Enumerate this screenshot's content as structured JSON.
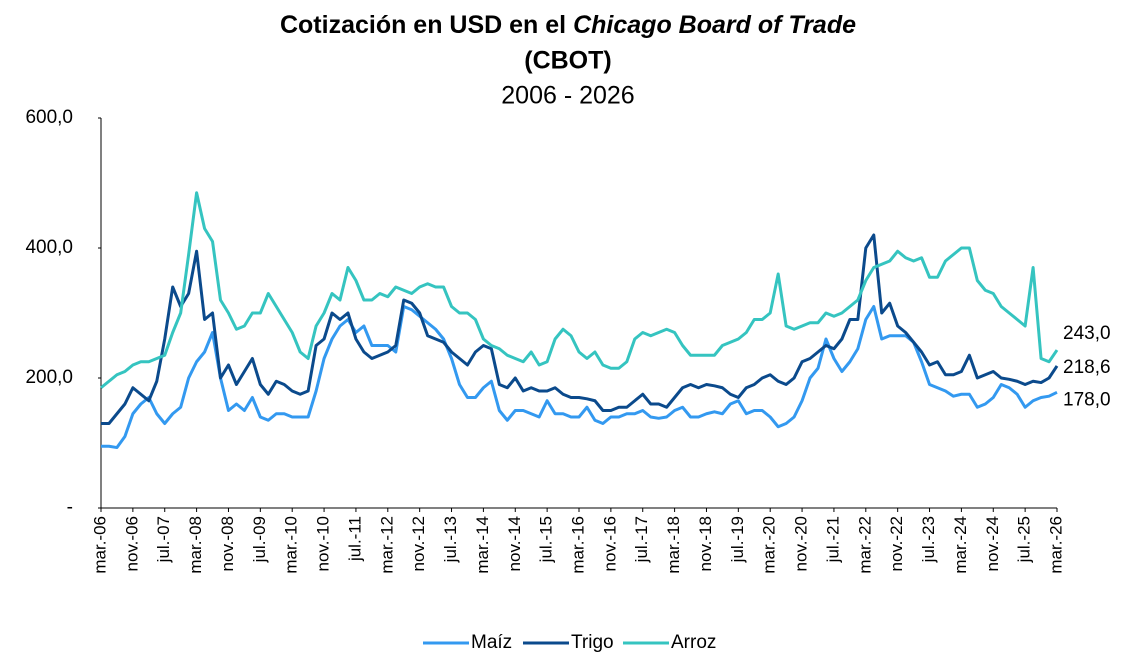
{
  "chart_data": {
    "type": "line",
    "title": "Cotización en USD en el",
    "title_italic": "Chicago  Board of Trade",
    "title_line2": "(CBOT)",
    "subtitle": "2006 - 2026",
    "ylim": [
      0,
      600
    ],
    "yticks": [
      {
        "value": 0,
        "label": "-"
      },
      {
        "value": 200,
        "label": "200,0"
      },
      {
        "value": 400,
        "label": "400,0"
      },
      {
        "value": 600,
        "label": "600,0"
      }
    ],
    "grid": false,
    "legend": "bottom",
    "categories": [
      "mar.-06",
      null,
      null,
      null,
      "nov.-06",
      null,
      null,
      null,
      "jul.-07",
      null,
      null,
      null,
      "mar.-08",
      null,
      null,
      null,
      "nov.-08",
      null,
      null,
      null,
      "jul.-09",
      null,
      null,
      null,
      "mar.-10",
      null,
      null,
      null,
      "nov.-10",
      null,
      null,
      null,
      "jul.-11",
      null,
      null,
      null,
      "mar.-12",
      null,
      null,
      null,
      "nov.-12",
      null,
      null,
      null,
      "jul.-13",
      null,
      null,
      null,
      "mar.-14",
      null,
      null,
      null,
      "nov.-14",
      null,
      null,
      null,
      "jul.-15",
      null,
      null,
      null,
      "mar.-16",
      null,
      null,
      null,
      "nov.-16",
      null,
      null,
      null,
      "jul.-17",
      null,
      null,
      null,
      "mar.-18",
      null,
      null,
      null,
      "nov.-18",
      null,
      null,
      null,
      "jul.-19",
      null,
      null,
      null,
      "mar.-20",
      null,
      null,
      null,
      "nov.-20",
      null,
      null,
      null,
      "jul.-21",
      null,
      null,
      null,
      "mar.-22",
      null,
      null,
      null,
      "nov.-22",
      null,
      null,
      null,
      "jul.-23",
      null,
      null,
      null,
      "mar.-24",
      null,
      null,
      null,
      "nov.-24",
      null,
      null,
      null,
      "jul.-25",
      null,
      null,
      null,
      "mar.-26"
    ],
    "series": [
      {
        "name": "Maíz",
        "color": "#3399f0",
        "last_label": "178,0",
        "values": [
          95,
          95,
          93,
          110,
          145,
          160,
          170,
          145,
          130,
          145,
          155,
          200,
          225,
          240,
          270,
          200,
          150,
          160,
          150,
          170,
          140,
          135,
          145,
          145,
          140,
          140,
          140,
          180,
          230,
          260,
          280,
          290,
          270,
          280,
          250,
          250,
          250,
          240,
          310,
          305,
          295,
          285,
          275,
          260,
          230,
          190,
          170,
          170,
          185,
          195,
          150,
          135,
          150,
          150,
          145,
          140,
          165,
          145,
          145,
          140,
          140,
          155,
          135,
          130,
          140,
          140,
          145,
          145,
          150,
          140,
          138,
          140,
          150,
          155,
          140,
          140,
          145,
          148,
          145,
          160,
          165,
          145,
          150,
          150,
          140,
          125,
          130,
          140,
          165,
          200,
          215,
          260,
          230,
          210,
          225,
          245,
          290,
          310,
          260,
          265,
          265,
          265,
          255,
          225,
          190,
          185,
          180,
          172,
          175,
          175,
          155,
          160,
          170,
          190,
          185,
          175,
          155,
          165,
          170,
          172,
          178
        ]
      },
      {
        "name": "Trigo",
        "color": "#0b4a8c",
        "last_label": "218,6",
        "values": [
          130,
          130,
          145,
          160,
          185,
          175,
          165,
          195,
          260,
          340,
          310,
          330,
          395,
          290,
          300,
          200,
          220,
          190,
          210,
          230,
          190,
          175,
          195,
          190,
          180,
          175,
          180,
          250,
          260,
          300,
          290,
          300,
          260,
          240,
          230,
          235,
          240,
          250,
          320,
          315,
          300,
          265,
          260,
          255,
          240,
          230,
          220,
          240,
          250,
          245,
          190,
          185,
          200,
          180,
          185,
          180,
          180,
          185,
          175,
          170,
          170,
          168,
          165,
          150,
          150,
          155,
          155,
          165,
          175,
          160,
          160,
          155,
          170,
          185,
          190,
          185,
          190,
          188,
          185,
          175,
          170,
          185,
          190,
          200,
          205,
          195,
          190,
          200,
          225,
          230,
          240,
          250,
          245,
          260,
          290,
          290,
          400,
          420,
          300,
          315,
          280,
          270,
          255,
          240,
          220,
          225,
          205,
          205,
          210,
          235,
          200,
          205,
          210,
          200,
          198,
          195,
          190,
          195,
          193,
          200,
          218.6
        ]
      },
      {
        "name": "Arroz",
        "color": "#35c4c0",
        "last_label": "243,0",
        "values": [
          185,
          195,
          205,
          210,
          220,
          225,
          225,
          230,
          235,
          270,
          300,
          390,
          485,
          430,
          410,
          320,
          300,
          275,
          280,
          300,
          300,
          330,
          310,
          290,
          270,
          240,
          230,
          280,
          300,
          330,
          320,
          370,
          350,
          320,
          320,
          330,
          325,
          340,
          335,
          330,
          340,
          345,
          340,
          340,
          310,
          300,
          300,
          290,
          260,
          250,
          245,
          235,
          230,
          225,
          240,
          220,
          225,
          260,
          275,
          265,
          240,
          230,
          240,
          220,
          215,
          215,
          225,
          260,
          270,
          265,
          270,
          275,
          270,
          250,
          235,
          235,
          235,
          235,
          250,
          255,
          260,
          270,
          290,
          290,
          300,
          360,
          280,
          275,
          280,
          285,
          285,
          300,
          295,
          300,
          310,
          320,
          350,
          370,
          375,
          380,
          395,
          385,
          380,
          385,
          355,
          355,
          380,
          390,
          400,
          400,
          350,
          335,
          330,
          310,
          300,
          290,
          280,
          370,
          230,
          225,
          243
        ]
      }
    ]
  }
}
